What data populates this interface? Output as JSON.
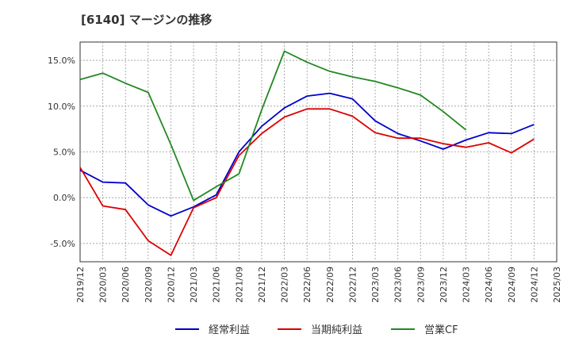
{
  "chart_data": {
    "type": "line",
    "title": "[6140]  マージンの推移",
    "xlabel": "",
    "ylabel": "",
    "x": [
      "2019/12",
      "2020/03",
      "2020/06",
      "2020/09",
      "2020/12",
      "2021/03",
      "2021/06",
      "2021/09",
      "2021/12",
      "2022/03",
      "2022/06",
      "2022/09",
      "2022/12",
      "2023/03",
      "2023/06",
      "2023/09",
      "2023/12",
      "2024/03",
      "2024/06",
      "2024/09",
      "2024/12",
      "2025/03"
    ],
    "ylim": [
      -7.0,
      17.0
    ],
    "yticks": [
      -5.0,
      0.0,
      5.0,
      10.0,
      15.0
    ],
    "ytick_labels": [
      "-5.0%",
      "0.0%",
      "5.0%",
      "10.0%",
      "15.0%"
    ],
    "grid": true,
    "legend_position": "bottom",
    "series": [
      {
        "name": "経常利益",
        "color": "#0000cc",
        "values": [
          3.0,
          1.7,
          1.6,
          -0.8,
          -2.0,
          -1.0,
          0.3,
          5.0,
          7.8,
          9.8,
          11.1,
          11.4,
          10.8,
          8.4,
          7.0,
          6.2,
          5.3,
          6.3,
          7.1,
          7.0,
          8.0,
          null
        ]
      },
      {
        "name": "当期純利益",
        "color": "#dd0000",
        "values": [
          3.3,
          -0.9,
          -1.3,
          -4.7,
          -6.3,
          -1.1,
          0.0,
          4.6,
          7.0,
          8.8,
          9.7,
          9.7,
          8.9,
          7.1,
          6.5,
          6.5,
          5.9,
          5.5,
          6.0,
          4.9,
          6.4,
          null
        ]
      },
      {
        "name": "営業CF",
        "color": "#228822",
        "values": [
          12.9,
          13.6,
          12.5,
          11.5,
          5.8,
          -0.3,
          1.2,
          2.6,
          9.6,
          16.0,
          14.8,
          13.8,
          13.2,
          12.7,
          12.0,
          11.2,
          9.4,
          7.4,
          null,
          null,
          null,
          null
        ]
      }
    ]
  }
}
